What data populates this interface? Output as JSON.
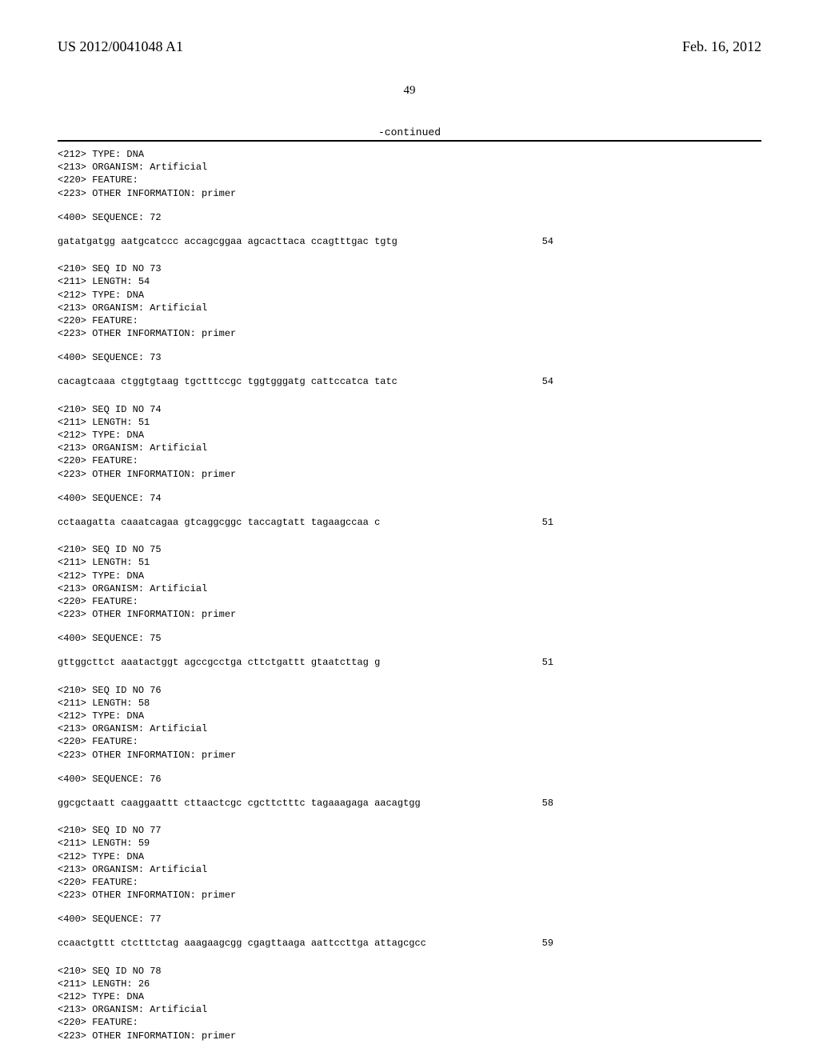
{
  "header": {
    "pub_number": "US 2012/0041048 A1",
    "pub_date": "Feb. 16, 2012"
  },
  "page_number": "49",
  "continued_label": "-continued",
  "prelude": {
    "type": "<212> TYPE: DNA",
    "organism": "<213> ORGANISM: Artificial",
    "feature": "<220> FEATURE:",
    "other": "<223> OTHER INFORMATION: primer",
    "seq_label": "<400> SEQUENCE: 72",
    "sequence": "gatatgatgg aatgcatccc accagcggaa agcacttaca ccagtttgac tgtg",
    "length": "54"
  },
  "entries": [
    {
      "id": "<210> SEQ ID NO 73",
      "len_line": "<211> LENGTH: 54",
      "type": "<212> TYPE: DNA",
      "organism": "<213> ORGANISM: Artificial",
      "feature": "<220> FEATURE:",
      "other": "<223> OTHER INFORMATION: primer",
      "seq_label": "<400> SEQUENCE: 73",
      "sequence": "cacagtcaaa ctggtgtaag tgctttccgc tggtgggatg cattccatca tatc",
      "length": "54"
    },
    {
      "id": "<210> SEQ ID NO 74",
      "len_line": "<211> LENGTH: 51",
      "type": "<212> TYPE: DNA",
      "organism": "<213> ORGANISM: Artificial",
      "feature": "<220> FEATURE:",
      "other": "<223> OTHER INFORMATION: primer",
      "seq_label": "<400> SEQUENCE: 74",
      "sequence": "cctaagatta caaatcagaa gtcaggcggc taccagtatt tagaagccaa c",
      "length": "51"
    },
    {
      "id": "<210> SEQ ID NO 75",
      "len_line": "<211> LENGTH: 51",
      "type": "<212> TYPE: DNA",
      "organism": "<213> ORGANISM: Artificial",
      "feature": "<220> FEATURE:",
      "other": "<223> OTHER INFORMATION: primer",
      "seq_label": "<400> SEQUENCE: 75",
      "sequence": "gttggcttct aaatactggt agccgcctga cttctgattt gtaatcttag g",
      "length": "51"
    },
    {
      "id": "<210> SEQ ID NO 76",
      "len_line": "<211> LENGTH: 58",
      "type": "<212> TYPE: DNA",
      "organism": "<213> ORGANISM: Artificial",
      "feature": "<220> FEATURE:",
      "other": "<223> OTHER INFORMATION: primer",
      "seq_label": "<400> SEQUENCE: 76",
      "sequence": "ggcgctaatt caaggaattt cttaactcgc cgcttctttc tagaaagaga aacagtgg",
      "length": "58"
    },
    {
      "id": "<210> SEQ ID NO 77",
      "len_line": "<211> LENGTH: 59",
      "type": "<212> TYPE: DNA",
      "organism": "<213> ORGANISM: Artificial",
      "feature": "<220> FEATURE:",
      "other": "<223> OTHER INFORMATION: primer",
      "seq_label": "<400> SEQUENCE: 77",
      "sequence": "ccaactgttt ctctttctag aaagaagcgg cgagttaaga aattccttga attagcgcc",
      "length": "59"
    },
    {
      "id": "<210> SEQ ID NO 78",
      "len_line": "<211> LENGTH: 26",
      "type": "<212> TYPE: DNA",
      "organism": "<213> ORGANISM: Artificial",
      "feature": "<220> FEATURE:",
      "other": "<223> OTHER INFORMATION: primer",
      "seq_label": "",
      "sequence": "",
      "length": ""
    }
  ]
}
